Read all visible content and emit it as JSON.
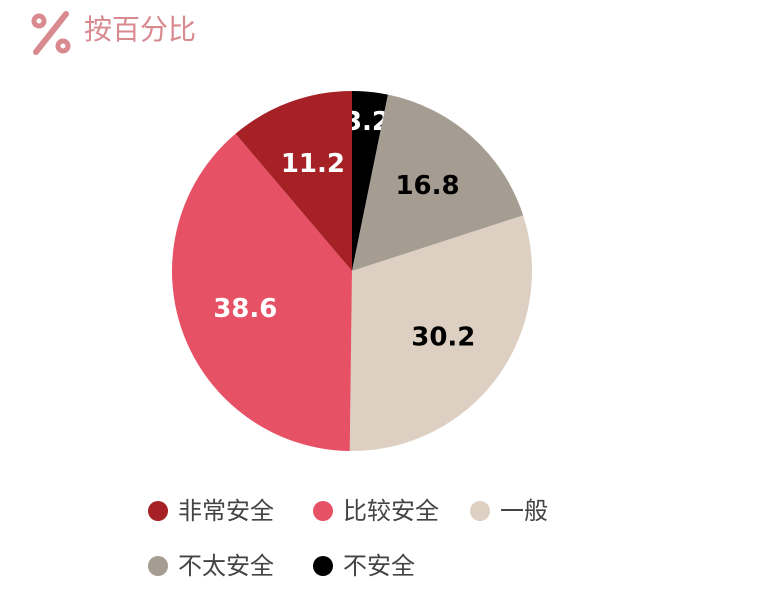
{
  "chart_data": {
    "type": "pie",
    "title": "按百分比",
    "categories": [
      "非常安全",
      "比较安全",
      "一般",
      "不太安全",
      "不安全"
    ],
    "values": [
      11.2,
      38.6,
      30.2,
      16.8,
      3.2
    ],
    "colors": [
      "#a52126",
      "#e75165",
      "#ddd0c2",
      "#a59c92",
      "#000000"
    ]
  }
}
